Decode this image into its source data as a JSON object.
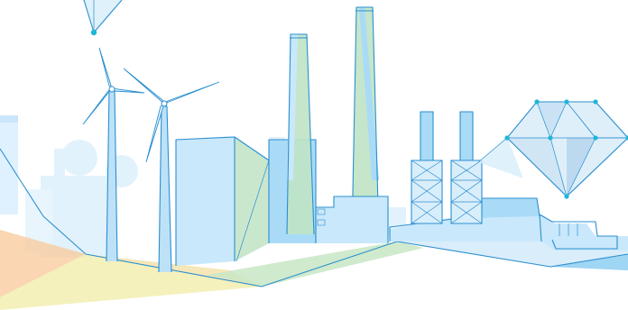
{
  "illustration": {
    "subject": "industrial-energy-landscape",
    "elements": [
      "wind-turbine",
      "factory-building",
      "chimney",
      "lattice-tower",
      "diamond-network",
      "background-city",
      "ground-polygon"
    ]
  },
  "colors": {
    "outline": "#2b8fd0",
    "fill_light": "#c9e8fb",
    "fill_mid": "#a9dbf7",
    "fill_green": "#bfe3c4",
    "background_city": "#dff0fb",
    "ground_orange": "#f8c89a",
    "ground_yellow": "#f3efb6",
    "node": "#1eb6d8"
  }
}
